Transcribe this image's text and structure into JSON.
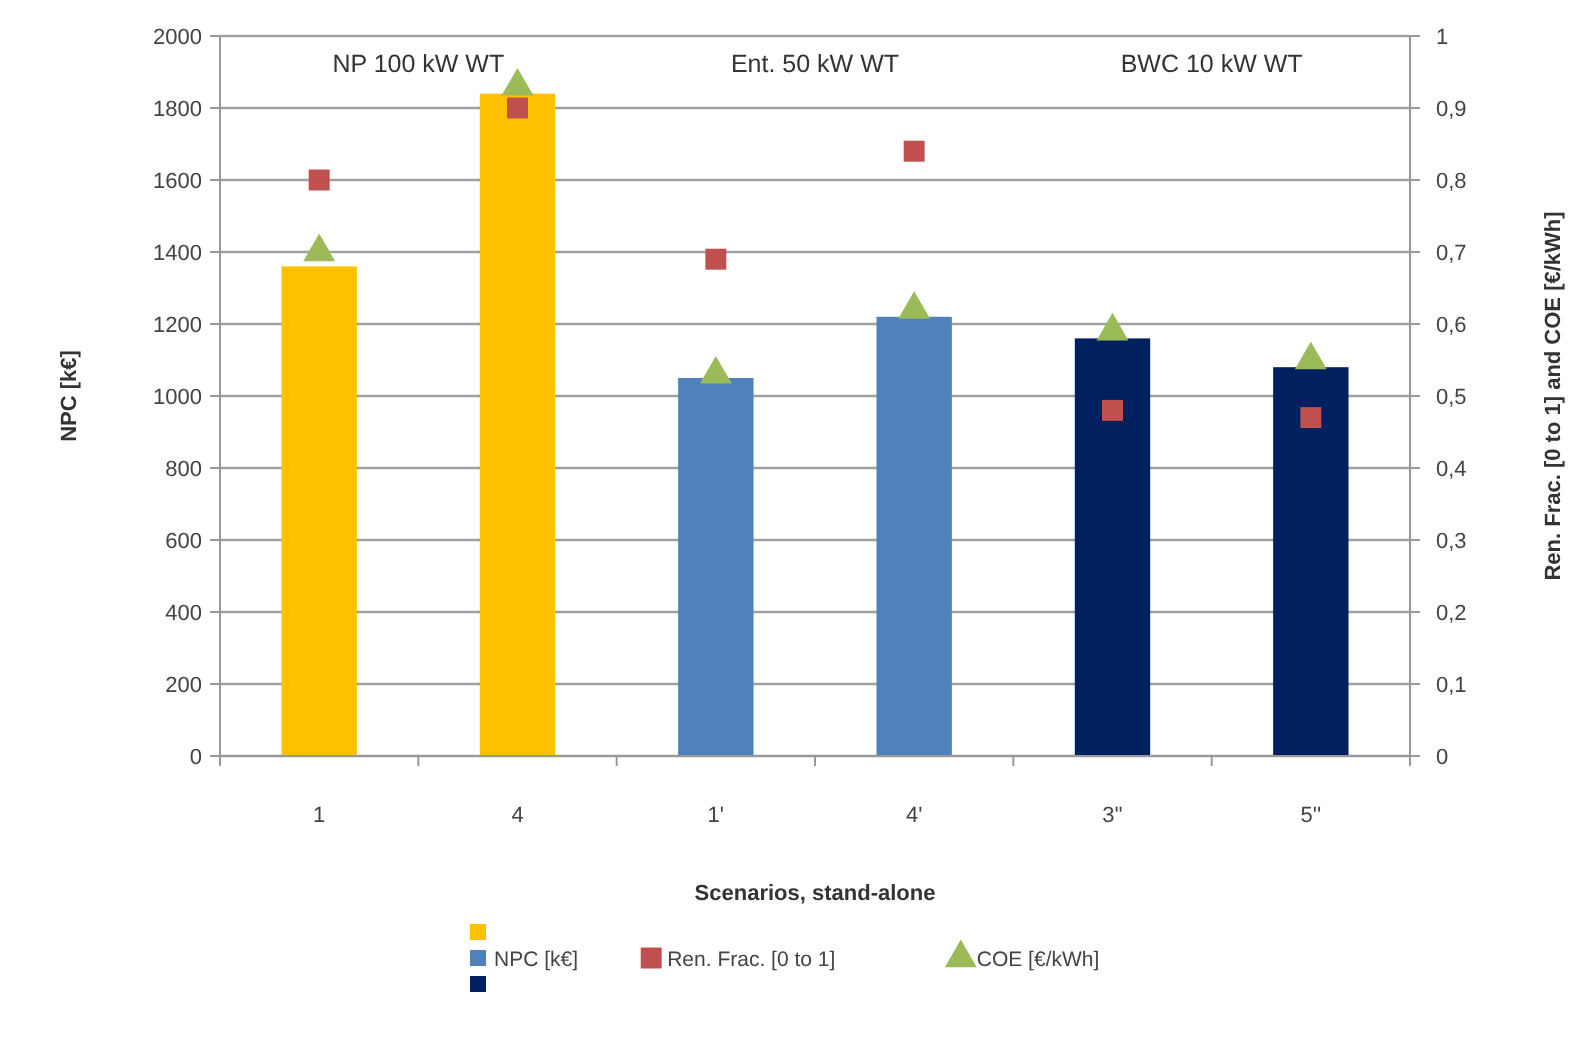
{
  "chart_data": {
    "type": "bar",
    "xlabel": "Scenarios, stand-alone",
    "ylabel": "NPC [k€]",
    "y2label": "Ren. Frac. [0 to 1] and COE [€/kWh]",
    "categories": [
      "1",
      "4",
      "1'",
      "4'",
      "3''",
      "5''"
    ],
    "series": [
      {
        "name": "NPC [k€]",
        "colors": [
          "#ffc000",
          "#ffc000",
          "#4f81bd",
          "#4f81bd",
          "#002060",
          "#002060"
        ],
        "values": [
          1360,
          1840,
          1050,
          1220,
          1160,
          1080
        ]
      },
      {
        "name": "Ren. Frac. [0 to 1]",
        "type": "scatter",
        "marker": "square",
        "axis": "y2",
        "color": "#c0504d",
        "values": [
          0.8,
          0.9,
          0.69,
          0.84,
          0.48,
          0.47
        ]
      },
      {
        "name": "COE [€/kWh]",
        "type": "scatter",
        "marker": "triangle",
        "axis": "y2",
        "color": "#9bbb59",
        "values": [
          0.7,
          0.93,
          0.53,
          0.62,
          0.59,
          0.55
        ]
      }
    ],
    "ylim": [
      0,
      2000
    ],
    "yticks": [
      0,
      200,
      400,
      600,
      800,
      1000,
      1200,
      1400,
      1600,
      1800,
      2000
    ],
    "y2lim": [
      0,
      1
    ],
    "y2ticks": [
      0,
      {
        "value": 0.1,
        "label": "0,1"
      },
      {
        "value": 0.2,
        "label": "0,2"
      },
      {
        "value": 0.3,
        "label": "0,3"
      },
      {
        "value": 0.4,
        "label": "0,4"
      },
      {
        "value": 0.5,
        "label": "0,5"
      },
      {
        "value": 0.6,
        "label": "0,6"
      },
      {
        "value": 0.7,
        "label": "0,7"
      },
      {
        "value": 0.8,
        "label": "0,8"
      },
      {
        "value": 0.9,
        "label": "0,9"
      },
      1
    ],
    "grid": "y",
    "legend": "bottom",
    "annotations": [
      "NP 100 kW WT",
      "Ent. 50 kW WT",
      "BWC 10 kW WT"
    ]
  }
}
